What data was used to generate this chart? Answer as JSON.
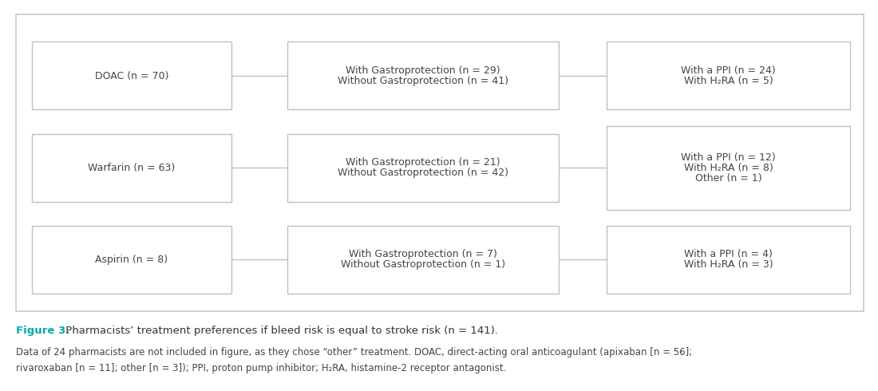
{
  "outer_border_color": "#c8c8c8",
  "box_edge_color": "#c0c0c0",
  "box_face_color": "#ffffff",
  "connector_color": "#c0c0c0",
  "text_color": "#444444",
  "caption_color": "#00aaaa",
  "caption_bold": "Figure 3.",
  "caption_rest": " Pharmacists’ treatment preferences if bleed risk is equal to stroke risk (n = 141).",
  "footnote_line1": "Data of 24 pharmacists are not included in figure, as they chose “other” treatment. DOAC, direct-acting oral anticoagulant (apixaban [n = 56];",
  "footnote_line2": "rivaroxaban [n = 11]; other [n = 3]); PPI, proton pump inhibitor; H₂RA, histamine-2 receptor antagonist.",
  "rows": [
    {
      "col1": "DOAC (n = 70)",
      "col2_lines": [
        "With Gastroprotection (n = 29)",
        "Without Gastroprotection (n = 41)"
      ],
      "col3_lines": [
        "With a PPI (n = 24)",
        "With H₂RA (n = 5)"
      ]
    },
    {
      "col1": "Warfarin (n = 63)",
      "col2_lines": [
        "With Gastroprotection (n = 21)",
        "Without Gastroprotection (n = 42)"
      ],
      "col3_lines": [
        "With a PPI (n = 12)",
        "With H₂RA (n = 8)",
        "Other (n = 1)"
      ]
    },
    {
      "col1": "Aspirin (n = 8)",
      "col2_lines": [
        "With Gastroprotection (n = 7)",
        "Without Gastroprotection (n = 1)"
      ],
      "col3_lines": [
        "With a PPI (n = 4)",
        "With H₂RA (n = 3)"
      ]
    }
  ],
  "figsize": [
    11.0,
    4.9
  ],
  "dpi": 100
}
